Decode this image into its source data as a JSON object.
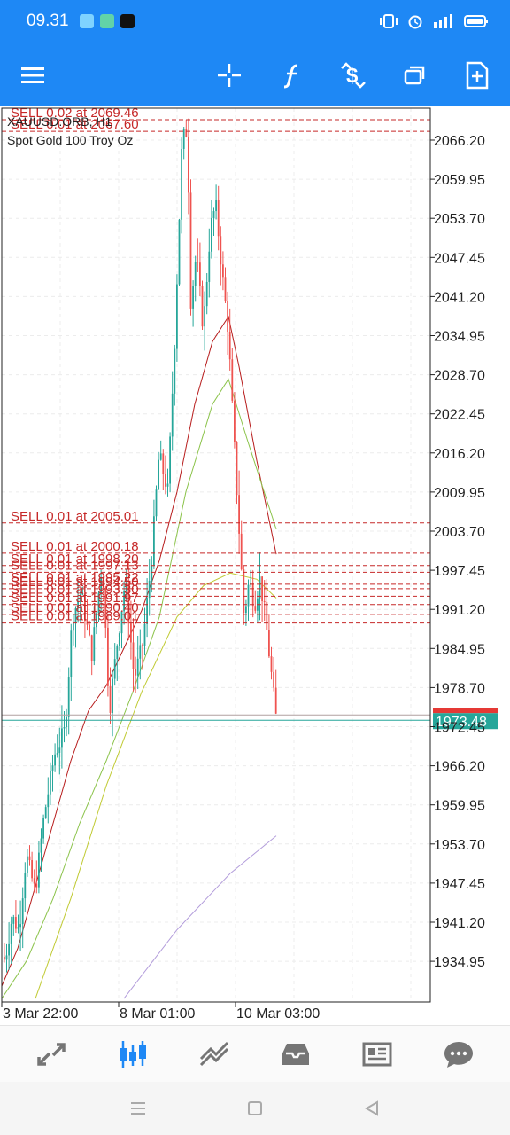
{
  "status_bar": {
    "time": "09.31"
  },
  "chart": {
    "symbol": "XAUUSD.ORB, H1",
    "description": "Spot Gold 100 Troy Oz",
    "price_labels": [
      "2066.20",
      "2059.95",
      "2053.70",
      "2047.45",
      "2041.20",
      "2034.95",
      "2028.70",
      "2022.45",
      "2016.20",
      "2009.95",
      "2003.70",
      "1997.45",
      "1991.20",
      "1984.95",
      "1978.70",
      "1972.45",
      "1966.20",
      "1959.95",
      "1953.70",
      "1947.45",
      "1941.20",
      "1934.95"
    ],
    "bid_price": "1973.48",
    "time_labels": [
      "3 Mar 22:00",
      "8 Mar 01:00",
      "10 Mar 03:00"
    ],
    "orders": [
      {
        "label": "SELL 0.02 at 2069.46",
        "price": 2069.46
      },
      {
        "label": "SELL 0.01 at 2067.60",
        "price": 2067.6
      },
      {
        "label": "SELL 0.01 at 2005.01",
        "price": 2005.01
      },
      {
        "label": "SELL 0.01 at 2000.18",
        "price": 2000.18
      },
      {
        "label": "SELL 0.01 at 1998.20",
        "price": 1998.2
      },
      {
        "label": "SELL 0.01 at 1997.13",
        "price": 1997.13
      },
      {
        "label": "SELL 0.01 at 1995.22",
        "price": 1995.22
      },
      {
        "label": "SELL 0.01 at 1994.50",
        "price": 1994.5
      },
      {
        "label": "SELL 0.01 at 1993.30",
        "price": 1993.3
      },
      {
        "label": "SELL 0.01 at 1991.97",
        "price": 1991.97
      },
      {
        "label": "SELL 0.01 at 1990.40",
        "price": 1990.4
      },
      {
        "label": "SELL 0.01 at 1989.01",
        "price": 1989.01
      }
    ],
    "colors": {
      "bull": "#26a69a",
      "bear": "#ef5350",
      "order": "#c62828",
      "bid": "#26a69a"
    }
  },
  "toolbar_icons": [
    "menu-icon",
    "crosshair-icon",
    "indicators-icon",
    "trade-icon",
    "windows-icon",
    "new-order-icon"
  ],
  "bottom_nav": [
    "quotes-icon",
    "chart-icon",
    "trade-icon",
    "history-icon",
    "news-icon",
    "messages-icon"
  ]
}
